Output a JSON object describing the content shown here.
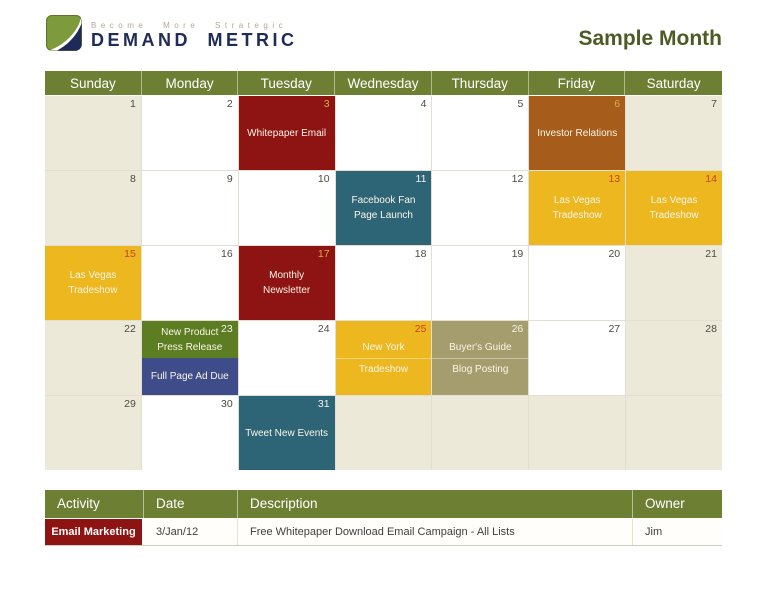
{
  "header": {
    "tagline": "Become More Strategic",
    "brand": "Demand Metric",
    "title": "Sample Month"
  },
  "colors": {
    "olive_header": "#6d7f33",
    "title_text": "#4d5a24",
    "weekend_bg": "#ece9d8",
    "events": {
      "red": "#8e1313",
      "brown": "#a65c1b",
      "teal": "#2d6577",
      "gold": "#edb71f",
      "green": "#5d7d23",
      "navy": "#3e4d8a",
      "khaki": "#a69d6e"
    },
    "dates": {
      "default": "#4b4b43",
      "gold": "#d9ad42",
      "onGold": "#c2452c",
      "light": "#f2f2ec"
    }
  },
  "calendar": {
    "day_headers": [
      "Sunday",
      "Monday",
      "Tuesday",
      "Wednesday",
      "Thursday",
      "Friday",
      "Saturday"
    ],
    "cells": [
      {
        "date": "1",
        "bg": "weekend"
      },
      {
        "date": "2",
        "bg": "day"
      },
      {
        "date": "3",
        "bg": "day",
        "date_color": "gold",
        "events": [
          {
            "color": "red",
            "lines": [
              "Whitepaper Email"
            ]
          }
        ]
      },
      {
        "date": "4",
        "bg": "day"
      },
      {
        "date": "5",
        "bg": "day"
      },
      {
        "date": "6",
        "bg": "day",
        "date_color": "gold",
        "events": [
          {
            "color": "brown",
            "lines": [
              "Investor Relations"
            ]
          }
        ]
      },
      {
        "date": "7",
        "bg": "weekend"
      },
      {
        "date": "8",
        "bg": "weekend"
      },
      {
        "date": "9",
        "bg": "day"
      },
      {
        "date": "10",
        "bg": "day"
      },
      {
        "date": "11",
        "bg": "day",
        "date_color": "light",
        "events": [
          {
            "color": "teal",
            "lines": [
              "Facebook Fan",
              "Page Launch"
            ]
          }
        ]
      },
      {
        "date": "12",
        "bg": "day"
      },
      {
        "date": "13",
        "bg": "day",
        "date_color": "onGold",
        "events": [
          {
            "color": "gold",
            "lines": [
              "Las Vegas",
              "Tradeshow"
            ]
          }
        ]
      },
      {
        "date": "14",
        "bg": "weekend",
        "date_color": "onGold",
        "events": [
          {
            "color": "gold",
            "lines": [
              "Las Vegas",
              "Tradeshow"
            ]
          }
        ]
      },
      {
        "date": "15",
        "bg": "weekend",
        "date_color": "onGold",
        "events": [
          {
            "color": "gold",
            "lines": [
              "Las Vegas",
              "Tradeshow"
            ]
          }
        ]
      },
      {
        "date": "16",
        "bg": "day"
      },
      {
        "date": "17",
        "bg": "day",
        "date_color": "gold",
        "events": [
          {
            "color": "red",
            "lines": [
              "Monthly",
              "Newsletter"
            ]
          }
        ]
      },
      {
        "date": "18",
        "bg": "day"
      },
      {
        "date": "19",
        "bg": "day"
      },
      {
        "date": "20",
        "bg": "day"
      },
      {
        "date": "21",
        "bg": "weekend"
      },
      {
        "date": "22",
        "bg": "weekend"
      },
      {
        "date": "23",
        "bg": "day",
        "date_color": "light",
        "events": [
          {
            "color": "green",
            "lines": [
              "New Product",
              "Press Release"
            ]
          },
          {
            "color": "navy",
            "lines": [
              "Full Page Ad Due"
            ]
          }
        ]
      },
      {
        "date": "24",
        "bg": "day"
      },
      {
        "date": "25",
        "bg": "day",
        "date_color": "onGold",
        "events": [
          {
            "color": "gold",
            "lines": [
              "New York",
              "Tradeshow"
            ],
            "split": true
          }
        ]
      },
      {
        "date": "26",
        "bg": "day",
        "date_color": "light",
        "events": [
          {
            "color": "khaki",
            "lines": [
              "Buyer's Guide",
              "Blog Posting"
            ],
            "split": true
          }
        ]
      },
      {
        "date": "27",
        "bg": "day"
      },
      {
        "date": "28",
        "bg": "weekend"
      },
      {
        "date": "29",
        "bg": "weekend"
      },
      {
        "date": "30",
        "bg": "day"
      },
      {
        "date": "31",
        "bg": "day",
        "date_color": "light",
        "events": [
          {
            "color": "teal",
            "lines": [
              "Tweet New Events"
            ]
          }
        ]
      },
      {
        "date": "",
        "bg": "blank"
      },
      {
        "date": "",
        "bg": "blank"
      },
      {
        "date": "",
        "bg": "blank"
      },
      {
        "date": "",
        "bg": "blank"
      }
    ]
  },
  "table": {
    "columns": [
      "Activity",
      "Date",
      "Description",
      "Owner"
    ],
    "rows": [
      {
        "activity": "Email Marketing",
        "activity_bg": "#8e1313",
        "date": "3/Jan/12",
        "description": "Free Whitepaper Download Email Campaign - All Lists",
        "owner": "Jim"
      }
    ]
  }
}
